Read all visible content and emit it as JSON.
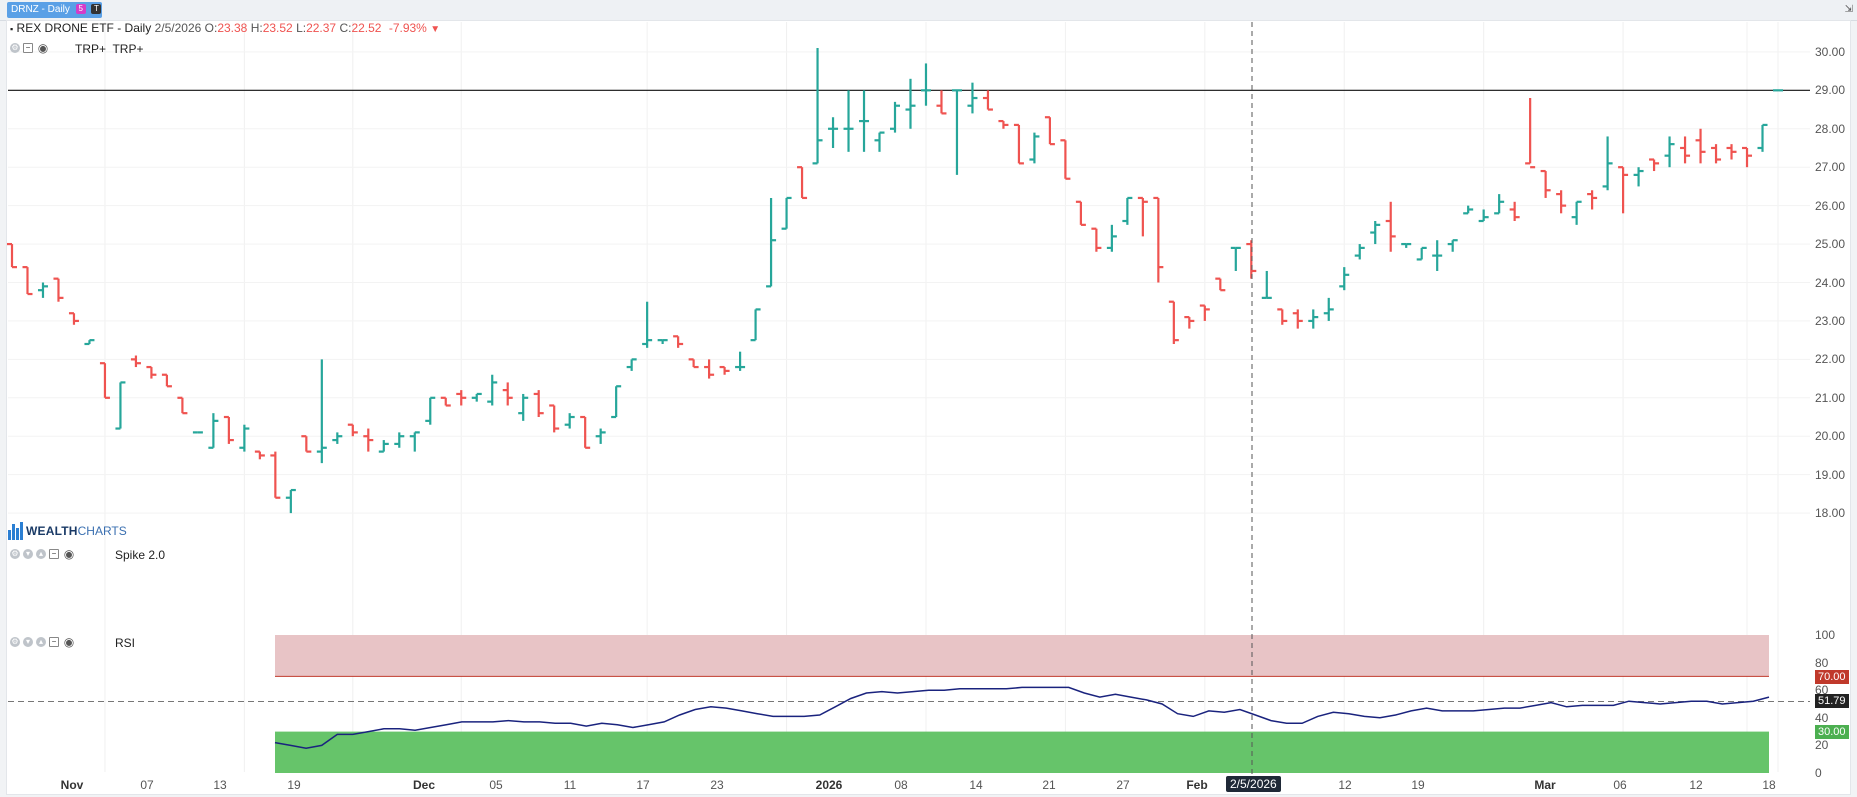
{
  "top_tab": {
    "label": "DRNZ - Daily",
    "badge1": "5",
    "badge2": "T"
  },
  "header": {
    "name": "REX DRONE ETF - Daily",
    "date": "2/5/2026",
    "o_label": "O:",
    "o_val": "23.38",
    "h_label": "H:",
    "h_val": "23.52",
    "l_label": "L:",
    "l_val": "22.37",
    "c_label": "C:",
    "c_val": "22.52",
    "change": "-7.93%"
  },
  "indicators": {
    "overlay_label": "TRP+",
    "overlay_label2": "TRP+",
    "spike_label": "Spike 2.0",
    "rsi_label": "RSI"
  },
  "logo": {
    "part1": "WEALTH",
    "part2": "CHARTS"
  },
  "colors": {
    "up": "#26a69a",
    "down": "#ef5350",
    "rsi_line": "#1a237e",
    "overbought": "#e8c4c6",
    "oversold": "#66c46a"
  },
  "price_axis": [
    "30.00",
    "29.00",
    "28.00",
    "27.00",
    "26.00",
    "25.00",
    "24.00",
    "23.00",
    "22.00",
    "21.00",
    "20.00",
    "19.00",
    "18.00"
  ],
  "rsi_axis": [
    "100",
    "80",
    "60",
    "40",
    "20",
    "0"
  ],
  "rsi_tags": {
    "overbought": "70.00",
    "current": "51.79",
    "oversold": "30.00"
  },
  "horizontal_line": 29.0,
  "x_labels": [
    {
      "t": "Nov",
      "bold": true
    },
    {
      "t": "07"
    },
    {
      "t": "13"
    },
    {
      "t": "19"
    },
    {
      "t": "Dec",
      "bold": true
    },
    {
      "t": "05"
    },
    {
      "t": "11"
    },
    {
      "t": "17"
    },
    {
      "t": "23"
    },
    {
      "t": "2026",
      "bold": true
    },
    {
      "t": "08"
    },
    {
      "t": "14"
    },
    {
      "t": "21"
    },
    {
      "t": "27"
    },
    {
      "t": "Feb",
      "bold": true
    },
    {
      "t": "12"
    },
    {
      "t": "19"
    },
    {
      "t": "Mar",
      "bold": true
    },
    {
      "t": "06"
    },
    {
      "t": "12"
    },
    {
      "t": "18"
    }
  ],
  "crosshair_date": "2/5/2026",
  "chart_data": {
    "type": "bar",
    "title": "REX DRONE ETF - Daily",
    "price_range": [
      17.3,
      30.7
    ],
    "ohlc": [
      [
        25.0,
        25.0,
        24.4,
        24.4
      ],
      [
        24.4,
        24.4,
        23.7,
        23.7
      ],
      [
        23.8,
        24.0,
        23.6,
        23.9
      ],
      [
        24.1,
        24.1,
        23.5,
        23.6
      ],
      [
        23.2,
        23.2,
        22.9,
        23.0
      ],
      [
        22.4,
        22.5,
        22.4,
        22.5
      ],
      [
        21.9,
        21.9,
        21.0,
        21.0
      ],
      [
        20.2,
        21.4,
        20.2,
        21.4
      ],
      [
        22.0,
        22.1,
        21.8,
        21.9
      ],
      [
        21.8,
        21.8,
        21.5,
        21.6
      ],
      [
        21.6,
        21.6,
        21.3,
        21.3
      ],
      [
        21.0,
        21.0,
        20.6,
        20.6
      ],
      [
        20.1,
        20.1,
        20.1,
        20.1
      ],
      [
        19.7,
        20.6,
        19.7,
        20.4
      ],
      [
        20.5,
        20.5,
        19.8,
        19.9
      ],
      [
        19.7,
        20.3,
        19.6,
        20.2
      ],
      [
        19.6,
        19.6,
        19.4,
        19.5
      ],
      [
        19.5,
        19.6,
        18.4,
        18.4
      ],
      [
        18.4,
        18.6,
        18.0,
        18.6
      ],
      [
        20.0,
        20.0,
        19.6,
        19.6
      ],
      [
        19.6,
        22.0,
        19.3,
        19.7
      ],
      [
        19.9,
        20.1,
        19.8,
        20.0
      ],
      [
        20.3,
        20.3,
        20.0,
        20.1
      ],
      [
        20.0,
        20.2,
        19.6,
        19.9
      ],
      [
        19.6,
        19.9,
        19.6,
        19.8
      ],
      [
        19.8,
        20.1,
        19.7,
        20.0
      ],
      [
        20.0,
        20.1,
        19.6,
        20.1
      ],
      [
        20.4,
        21.0,
        20.3,
        21.0
      ],
      [
        21.0,
        21.0,
        20.8,
        20.8
      ],
      [
        21.1,
        21.2,
        20.8,
        21.0
      ],
      [
        21.0,
        21.1,
        20.9,
        21.1
      ],
      [
        20.9,
        21.6,
        20.8,
        21.4
      ],
      [
        21.2,
        21.4,
        20.8,
        21.0
      ],
      [
        20.6,
        21.1,
        20.4,
        21.0
      ],
      [
        21.1,
        21.2,
        20.5,
        20.6
      ],
      [
        20.8,
        20.8,
        20.1,
        20.2
      ],
      [
        20.3,
        20.6,
        20.2,
        20.5
      ],
      [
        20.5,
        20.5,
        19.7,
        19.7
      ],
      [
        20.0,
        20.2,
        19.8,
        20.1
      ],
      [
        20.5,
        21.3,
        20.5,
        21.3
      ],
      [
        21.8,
        22.0,
        21.7,
        22.0
      ],
      [
        22.4,
        23.5,
        22.3,
        22.5
      ],
      [
        22.5,
        22.5,
        22.4,
        22.5
      ],
      [
        22.6,
        22.6,
        22.3,
        22.4
      ],
      [
        22.0,
        22.0,
        21.8,
        21.8
      ],
      [
        21.8,
        22.0,
        21.5,
        21.6
      ],
      [
        21.8,
        21.8,
        21.6,
        21.7
      ],
      [
        21.8,
        22.2,
        21.7,
        21.8
      ],
      [
        22.5,
        23.3,
        22.5,
        23.3
      ],
      [
        23.9,
        26.2,
        23.9,
        25.1
      ],
      [
        25.4,
        26.2,
        25.4,
        26.2
      ],
      [
        27.0,
        27.0,
        26.2,
        26.2
      ],
      [
        27.1,
        30.1,
        27.1,
        27.7
      ],
      [
        28.0,
        28.3,
        27.5,
        28.0
      ],
      [
        28.0,
        29.0,
        27.4,
        28.0
      ],
      [
        28.2,
        29.0,
        27.4,
        28.2
      ],
      [
        27.7,
        27.9,
        27.4,
        27.9
      ],
      [
        28.0,
        28.7,
        27.9,
        28.6
      ],
      [
        28.5,
        29.3,
        28.0,
        28.6
      ],
      [
        29.0,
        29.7,
        28.6,
        29.0
      ],
      [
        28.6,
        29.0,
        28.4,
        28.4
      ],
      [
        29.0,
        29.0,
        26.8,
        29.0
      ],
      [
        28.6,
        29.2,
        28.4,
        28.8
      ],
      [
        28.8,
        29.0,
        28.5,
        28.5
      ],
      [
        28.2,
        28.2,
        28.0,
        28.1
      ],
      [
        28.1,
        28.1,
        27.1,
        27.1
      ],
      [
        27.2,
        27.9,
        27.1,
        27.8
      ],
      [
        28.3,
        28.3,
        27.6,
        27.6
      ],
      [
        27.7,
        27.7,
        26.7,
        26.7
      ],
      [
        26.1,
        26.1,
        25.5,
        25.5
      ],
      [
        25.4,
        25.4,
        24.8,
        24.9
      ],
      [
        24.9,
        25.5,
        24.8,
        25.2
      ],
      [
        25.6,
        26.2,
        25.5,
        26.2
      ],
      [
        26.2,
        26.2,
        25.2,
        26.1
      ],
      [
        26.2,
        26.2,
        24.0,
        24.4
      ],
      [
        23.5,
        23.5,
        22.4,
        22.5
      ],
      [
        23.1,
        23.1,
        22.8,
        23.0
      ],
      [
        23.4,
        23.4,
        23.0,
        23.3
      ],
      [
        24.1,
        24.1,
        23.8,
        23.8
      ],
      [
        24.9,
        24.9,
        24.3,
        24.9
      ],
      [
        25.0,
        25.1,
        24.1,
        24.3
      ],
      [
        23.6,
        24.3,
        23.6,
        23.6
      ],
      [
        23.3,
        23.3,
        22.9,
        23.0
      ],
      [
        23.2,
        23.3,
        22.8,
        23.0
      ],
      [
        23.0,
        23.3,
        22.8,
        23.1
      ],
      [
        23.2,
        23.6,
        23.0,
        23.3
      ],
      [
        23.9,
        24.4,
        23.8,
        24.2
      ],
      [
        24.7,
        25.0,
        24.6,
        24.9
      ],
      [
        25.3,
        25.6,
        25.0,
        25.5
      ],
      [
        25.6,
        26.1,
        24.8,
        25.2
      ],
      [
        25.0,
        25.0,
        24.9,
        25.0
      ],
      [
        24.6,
        24.9,
        24.6,
        24.9
      ],
      [
        24.7,
        25.1,
        24.3,
        24.7
      ],
      [
        25.0,
        25.1,
        24.8,
        25.1
      ],
      [
        25.8,
        26.0,
        25.8,
        25.9
      ],
      [
        25.6,
        25.9,
        25.6,
        25.7
      ],
      [
        25.8,
        26.3,
        25.8,
        26.1
      ],
      [
        25.9,
        26.1,
        25.6,
        25.7
      ],
      [
        27.1,
        28.8,
        27.1,
        27.0
      ],
      [
        26.9,
        26.9,
        26.2,
        26.4
      ],
      [
        26.3,
        26.4,
        25.8,
        26.0
      ],
      [
        25.7,
        26.1,
        25.5,
        26.1
      ],
      [
        26.3,
        26.4,
        25.9,
        26.2
      ],
      [
        26.5,
        27.8,
        26.4,
        27.1
      ],
      [
        27.0,
        27.0,
        25.8,
        26.8
      ],
      [
        26.8,
        27.0,
        26.5,
        26.9
      ],
      [
        27.2,
        27.2,
        26.9,
        27.1
      ],
      [
        27.3,
        27.8,
        27.0,
        27.6
      ],
      [
        27.5,
        27.8,
        27.1,
        27.3
      ],
      [
        27.7,
        28.0,
        27.1,
        27.4
      ],
      [
        27.5,
        27.6,
        27.1,
        27.2
      ],
      [
        27.5,
        27.6,
        27.2,
        27.4
      ],
      [
        27.5,
        27.5,
        27.0,
        27.3
      ],
      [
        27.5,
        28.1,
        27.4,
        28.1
      ],
      [
        29.0,
        29.0,
        29.0,
        29.0
      ]
    ],
    "rsi": {
      "range": [
        0,
        100
      ],
      "overbought": 70,
      "oversold": 30,
      "current": 51.79,
      "values": [
        22,
        20,
        18,
        20,
        28,
        28,
        30,
        32,
        32,
        31,
        33,
        35,
        37,
        37,
        37,
        38,
        37,
        37,
        36,
        36,
        34,
        36,
        35,
        33,
        35,
        37,
        42,
        46,
        48,
        47,
        45,
        43,
        41,
        41,
        41,
        42,
        48,
        54,
        58,
        59,
        58,
        59,
        60,
        60,
        61,
        61,
        61,
        61,
        62,
        62,
        62,
        62,
        58,
        55,
        57,
        55,
        53,
        50,
        43,
        41,
        45,
        44,
        46,
        42,
        38,
        36,
        36,
        41,
        44,
        43,
        41,
        40,
        42,
        45,
        47,
        45,
        45,
        45,
        46,
        47,
        47,
        49,
        51,
        48,
        49,
        49,
        49,
        52,
        51,
        50,
        51,
        52,
        52,
        50,
        51,
        52,
        55
      ]
    }
  }
}
